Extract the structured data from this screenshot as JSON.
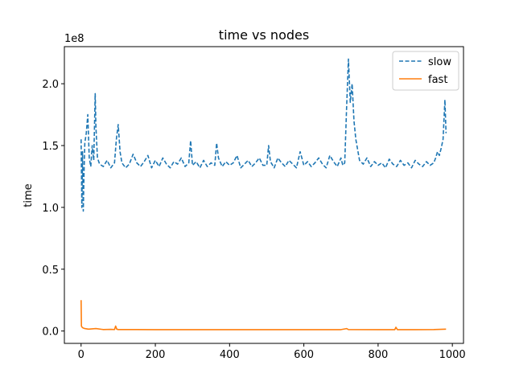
{
  "chart_data": {
    "type": "line",
    "title": "time vs nodes",
    "xlabel": "",
    "ylabel": "time",
    "y_offset_label": "1e8",
    "xlim": [
      -45,
      1030
    ],
    "ylim": [
      -0.1,
      2.3
    ],
    "x_ticks": [
      0,
      200,
      400,
      600,
      800,
      1000
    ],
    "x_tick_labels": [
      "0",
      "200",
      "400",
      "600",
      "800",
      "1000"
    ],
    "y_ticks": [
      0.0,
      0.5,
      1.0,
      1.5,
      2.0
    ],
    "y_tick_labels": [
      "0.0",
      "0.5",
      "1.0",
      "1.5",
      "2.0"
    ],
    "grid": false,
    "legend_position": "top-right",
    "series": [
      {
        "name": "slow",
        "color": "#1f77b4",
        "style": "dashed",
        "x": [
          0,
          2,
          4,
          6,
          8,
          10,
          14,
          18,
          22,
          26,
          30,
          34,
          38,
          40,
          44,
          50,
          60,
          70,
          80,
          90,
          95,
          100,
          105,
          110,
          120,
          130,
          140,
          150,
          160,
          170,
          180,
          190,
          200,
          210,
          220,
          230,
          240,
          250,
          260,
          270,
          280,
          290,
          295,
          300,
          310,
          320,
          330,
          340,
          350,
          360,
          365,
          370,
          380,
          390,
          400,
          410,
          420,
          430,
          440,
          450,
          460,
          470,
          480,
          490,
          500,
          505,
          510,
          520,
          530,
          540,
          550,
          560,
          570,
          580,
          590,
          600,
          610,
          620,
          630,
          640,
          650,
          660,
          670,
          680,
          690,
          700,
          705,
          710,
          715,
          720,
          725,
          730,
          735,
          740,
          750,
          760,
          770,
          780,
          790,
          800,
          810,
          820,
          830,
          840,
          850,
          860,
          870,
          880,
          890,
          900,
          910,
          920,
          930,
          940,
          950,
          955,
          960,
          965,
          970,
          975,
          980,
          983
        ],
        "values": [
          1.55,
          1.0,
          1.45,
          0.97,
          1.3,
          1.52,
          1.6,
          1.75,
          1.4,
          1.33,
          1.5,
          1.38,
          1.92,
          1.65,
          1.4,
          1.35,
          1.33,
          1.38,
          1.32,
          1.36,
          1.55,
          1.67,
          1.45,
          1.36,
          1.32,
          1.35,
          1.43,
          1.36,
          1.33,
          1.37,
          1.42,
          1.32,
          1.38,
          1.33,
          1.4,
          1.35,
          1.32,
          1.37,
          1.35,
          1.4,
          1.33,
          1.36,
          1.54,
          1.34,
          1.37,
          1.32,
          1.38,
          1.33,
          1.36,
          1.34,
          1.52,
          1.4,
          1.33,
          1.37,
          1.34,
          1.36,
          1.42,
          1.32,
          1.35,
          1.38,
          1.33,
          1.36,
          1.4,
          1.34,
          1.34,
          1.5,
          1.37,
          1.32,
          1.4,
          1.36,
          1.33,
          1.38,
          1.35,
          1.32,
          1.45,
          1.34,
          1.37,
          1.33,
          1.36,
          1.4,
          1.35,
          1.32,
          1.42,
          1.37,
          1.33,
          1.4,
          1.34,
          1.36,
          1.8,
          2.2,
          1.85,
          2.0,
          1.7,
          1.55,
          1.38,
          1.35,
          1.4,
          1.33,
          1.37,
          1.34,
          1.36,
          1.32,
          1.39,
          1.35,
          1.33,
          1.38,
          1.34,
          1.36,
          1.32,
          1.38,
          1.35,
          1.33,
          1.37,
          1.34,
          1.36,
          1.4,
          1.45,
          1.42,
          1.48,
          1.55,
          1.87,
          1.6
        ]
      },
      {
        "name": "fast",
        "color": "#ff7f0e",
        "style": "solid",
        "x": [
          0,
          1,
          3,
          5,
          10,
          20,
          40,
          60,
          80,
          90,
          93,
          96,
          100,
          150,
          200,
          300,
          400,
          500,
          600,
          700,
          715,
          720,
          800,
          845,
          848,
          852,
          900,
          950,
          983
        ],
        "values": [
          0.25,
          0.04,
          0.03,
          0.025,
          0.02,
          0.015,
          0.02,
          0.012,
          0.013,
          0.012,
          0.04,
          0.015,
          0.012,
          0.012,
          0.011,
          0.011,
          0.011,
          0.011,
          0.011,
          0.011,
          0.02,
          0.012,
          0.011,
          0.011,
          0.03,
          0.011,
          0.011,
          0.012,
          0.015
        ]
      }
    ]
  }
}
